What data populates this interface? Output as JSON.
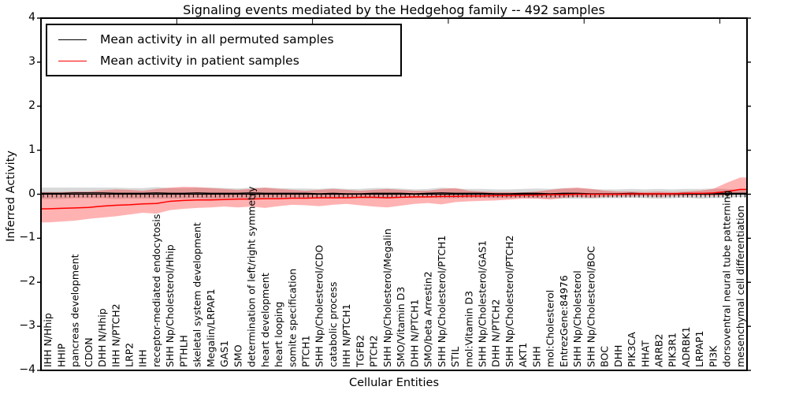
{
  "title": "Signaling events mediated by the Hedgehog family -- 492 samples",
  "legend": {
    "items": [
      {
        "label": "Mean activity in all permuted samples",
        "color": "#000000"
      },
      {
        "label": "Mean activity in patient samples",
        "color": "#ff0000"
      }
    ]
  },
  "colors": {
    "permuted_line": "#000000",
    "patient_line": "#ff0000",
    "patient_band": "rgba(255,0,0,0.30)",
    "permuted_band": "rgba(125,125,125,0.30)",
    "frame": "#000000",
    "background": "#ffffff"
  },
  "chart_data": {
    "type": "line",
    "title": "Signaling events mediated by the Hedgehog family -- 492 samples",
    "xlabel": "Cellular Entities",
    "ylabel": "Inferred Activity",
    "ylim": [
      -4,
      4
    ],
    "yticks": [
      -4,
      -3,
      -2,
      -1,
      0,
      1,
      2,
      3,
      4
    ],
    "xticks_major_positions": [
      10,
      20,
      30,
      40,
      50
    ],
    "grid": false,
    "legend_position": "upper left",
    "zero_line": true,
    "categories": [
      "IHH N/Hhip",
      "HHIP",
      "pancreas development",
      "CDON",
      "DHH N/Hhip",
      "IHH N/PTCH2",
      "LRP2",
      "IHH",
      "receptor-mediated endocytosis",
      "SHH Np/Cholesterol/Hhip",
      "PTHLH",
      "skeletal system development",
      "Megalin/LRPAP1",
      "GAS1",
      "SMO",
      "determination of left/right symmetry",
      "heart development",
      "heart looping",
      "somite specification",
      "PTCH1",
      "SHH Np/Cholesterol/CDO",
      "catabolic process",
      "IHH N/PTCH1",
      "TGFB2",
      "PTCH2",
      "SHH Np/Cholesterol/Megalin",
      "SMO/Vitamin D3",
      "DHH N/PTCH1",
      "SMO/beta Arrestin2",
      "SHH Np/Cholesterol/PTCH1",
      "STIL",
      "mol:Vitamin D3",
      "SHH Np/Cholesterol/GAS1",
      "DHH N/PTCH2",
      "SHH Np/Cholesterol/PTCH2",
      "AKT1",
      "SHH",
      "mol:Cholesterol",
      "EntrezGene:84976",
      "SHH Np/Cholesterol",
      "SHH Np/Cholesterol/BOC",
      "BOC",
      "DHH",
      "PIK3CA",
      "HHAT",
      "ARRB2",
      "PIK3R1",
      "ADRBK1",
      "LRPAP1",
      "PI3K",
      "dorsoventral neural tube patterning",
      "mesenchymal cell differentiation"
    ],
    "series": [
      {
        "name": "Mean activity in all permuted samples",
        "color": "#000000",
        "values": [
          0.02,
          0.02,
          0.03,
          0.03,
          0.03,
          0.02,
          0.02,
          0.02,
          0.03,
          0.02,
          0.02,
          0.03,
          0.02,
          0.02,
          0.02,
          0.03,
          0.02,
          0.02,
          0.02,
          0.02,
          0.01,
          0.02,
          0.01,
          0.01,
          0.02,
          0.02,
          0.02,
          0.01,
          0.02,
          0.03,
          0.02,
          0.02,
          0.02,
          0.01,
          0.01,
          0.02,
          0.02,
          0.01,
          0.02,
          0.02,
          0.01,
          0.01,
          0.01,
          0.02,
          0.01,
          0.01,
          0.01,
          0.02,
          0.01,
          0.02,
          0.02,
          0.02
        ],
        "band_lo": [
          -0.11,
          -0.11,
          -0.09,
          -0.09,
          -0.09,
          -0.11,
          -0.1,
          -0.1,
          -0.1,
          -0.1,
          -0.1,
          -0.09,
          -0.11,
          -0.1,
          -0.09,
          -0.09,
          -0.11,
          -0.1,
          -0.09,
          -0.09,
          -0.1,
          -0.1,
          -0.1,
          -0.1,
          -0.1,
          -0.1,
          -0.09,
          -0.09,
          -0.08,
          -0.09,
          -0.09,
          -0.08,
          -0.08,
          -0.09,
          -0.09,
          -0.08,
          -0.09,
          -0.1,
          -0.1,
          -0.1,
          -0.1,
          -0.09,
          -0.09,
          -0.08,
          -0.09,
          -0.1,
          -0.09,
          -0.08,
          -0.1,
          -0.09,
          -0.08,
          -0.06
        ],
        "band_hi": [
          0.15,
          0.15,
          0.15,
          0.15,
          0.15,
          0.15,
          0.14,
          0.14,
          0.16,
          0.14,
          0.14,
          0.15,
          0.15,
          0.14,
          0.13,
          0.15,
          0.15,
          0.14,
          0.13,
          0.13,
          0.12,
          0.14,
          0.12,
          0.12,
          0.14,
          0.14,
          0.13,
          0.11,
          0.12,
          0.15,
          0.13,
          0.12,
          0.12,
          0.11,
          0.11,
          0.12,
          0.13,
          0.12,
          0.14,
          0.14,
          0.12,
          0.11,
          0.11,
          0.12,
          0.11,
          0.12,
          0.11,
          0.12,
          0.12,
          0.13,
          0.12,
          0.1
        ]
      },
      {
        "name": "Mean activity in patient samples",
        "color": "#ff0000",
        "values": [
          -0.33,
          -0.32,
          -0.31,
          -0.3,
          -0.27,
          -0.25,
          -0.24,
          -0.22,
          -0.21,
          -0.16,
          -0.14,
          -0.13,
          -0.13,
          -0.12,
          -0.11,
          -0.11,
          -0.1,
          -0.1,
          -0.09,
          -0.09,
          -0.08,
          -0.08,
          -0.08,
          -0.07,
          -0.07,
          -0.08,
          -0.07,
          -0.06,
          -0.06,
          -0.05,
          -0.05,
          -0.04,
          -0.04,
          -0.03,
          -0.03,
          -0.02,
          -0.02,
          -0.01,
          -0.01,
          0.0,
          0.0,
          0.0,
          0.0,
          0.01,
          0.01,
          0.01,
          0.01,
          0.02,
          0.02,
          0.03,
          0.06,
          0.11
        ],
        "band_lo": [
          -0.64,
          -0.62,
          -0.6,
          -0.56,
          -0.53,
          -0.5,
          -0.46,
          -0.42,
          -0.44,
          -0.36,
          -0.33,
          -0.31,
          -0.3,
          -0.28,
          -0.3,
          -0.28,
          -0.31,
          -0.27,
          -0.24,
          -0.25,
          -0.27,
          -0.24,
          -0.22,
          -0.25,
          -0.28,
          -0.3,
          -0.26,
          -0.22,
          -0.2,
          -0.23,
          -0.18,
          -0.16,
          -0.15,
          -0.14,
          -0.12,
          -0.1,
          -0.1,
          -0.12,
          -0.08,
          -0.06,
          -0.08,
          -0.06,
          -0.05,
          -0.05,
          -0.04,
          -0.06,
          -0.04,
          -0.04,
          -0.03,
          -0.04,
          -0.02,
          0.0
        ],
        "band_hi": [
          0.05,
          0.05,
          0.06,
          0.06,
          0.09,
          0.11,
          0.1,
          0.08,
          0.12,
          0.15,
          0.17,
          0.16,
          0.14,
          0.12,
          0.1,
          0.12,
          0.15,
          0.12,
          0.1,
          0.08,
          0.1,
          0.12,
          0.1,
          0.08,
          0.1,
          0.12,
          0.1,
          0.08,
          0.08,
          0.12,
          0.14,
          0.08,
          0.06,
          0.05,
          0.05,
          0.04,
          0.06,
          0.1,
          0.13,
          0.15,
          0.12,
          0.08,
          0.06,
          0.06,
          0.05,
          0.06,
          0.05,
          0.06,
          0.08,
          0.12,
          0.26,
          0.38
        ]
      }
    ]
  }
}
